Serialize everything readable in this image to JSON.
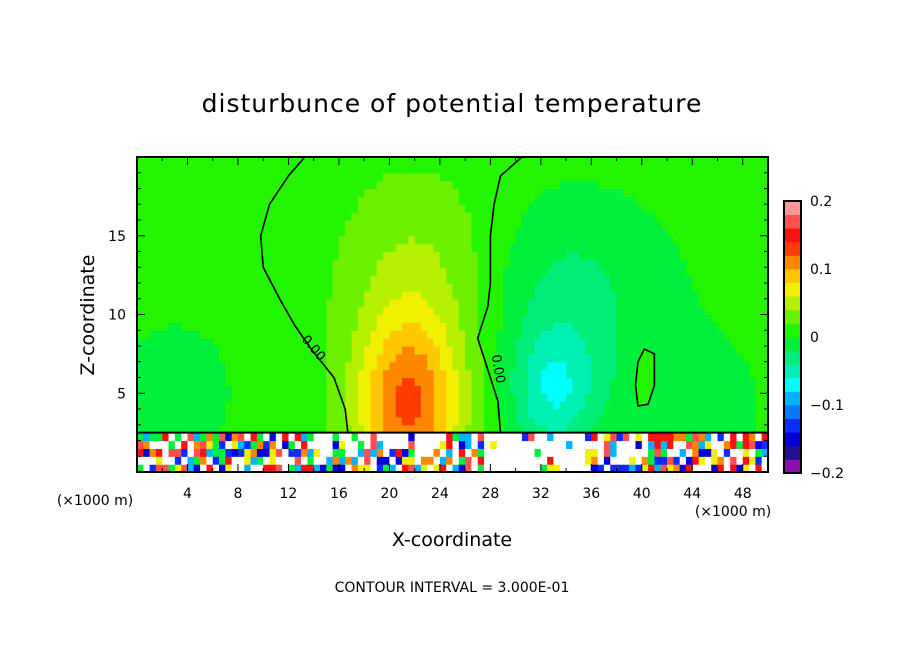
{
  "chart_data": {
    "type": "heatmap",
    "title": "disturbunce of potential temperature",
    "xlabel": "X-coordinate",
    "ylabel": "Z-coordinate",
    "x_unit_left": "(×1000 m)",
    "x_unit_right": "(×1000 m)",
    "xlim": [
      0,
      50
    ],
    "ylim": [
      0,
      20
    ],
    "xticks": [
      4,
      8,
      12,
      16,
      20,
      24,
      28,
      32,
      36,
      40,
      44,
      48
    ],
    "xtick_labels": [
      "4",
      "8",
      "12",
      "16",
      "20",
      "24",
      "28",
      "32",
      "36",
      "40",
      "44",
      "48"
    ],
    "yticks": [
      5,
      10,
      15
    ],
    "ytick_labels": [
      "5",
      "10",
      "15"
    ],
    "contour_label": "0.00",
    "contour_interval_text": "CONTOUR INTERVAL = 3.000E-01",
    "colorbar": {
      "min": -0.2,
      "max": 0.2,
      "step": 0.02,
      "tick_values": [
        0.2,
        0.1,
        0,
        -0.1,
        -0.2
      ],
      "tick_labels": [
        "0.2",
        "0.1",
        "0",
        "−0.1",
        "−0.2"
      ],
      "colors": [
        "#8b0fa8",
        "#23108c",
        "#0000d8",
        "#0a2cff",
        "#0878ff",
        "#00b4ff",
        "#00ffff",
        "#00f0b4",
        "#00ee78",
        "#00f03c",
        "#23f500",
        "#6bf000",
        "#b4f000",
        "#f0f000",
        "#ffc800",
        "#ff8700",
        "#ff3c00",
        "#ff1010",
        "#ff5050",
        "#ff9696"
      ]
    },
    "features": [
      {
        "name": "warm plume",
        "x_center": 22,
        "z_top": 18,
        "max_value": 0.12
      },
      {
        "name": "cool plume",
        "x_center": 33,
        "z_top": 15,
        "min_value": -0.08
      },
      {
        "name": "zero contour left",
        "x_range": [
          10,
          17
        ]
      },
      {
        "name": "zero contour right",
        "x_range": [
          28,
          34
        ]
      },
      {
        "name": "turbulent boundary layer",
        "z_range": [
          0,
          2.5
        ]
      }
    ]
  }
}
